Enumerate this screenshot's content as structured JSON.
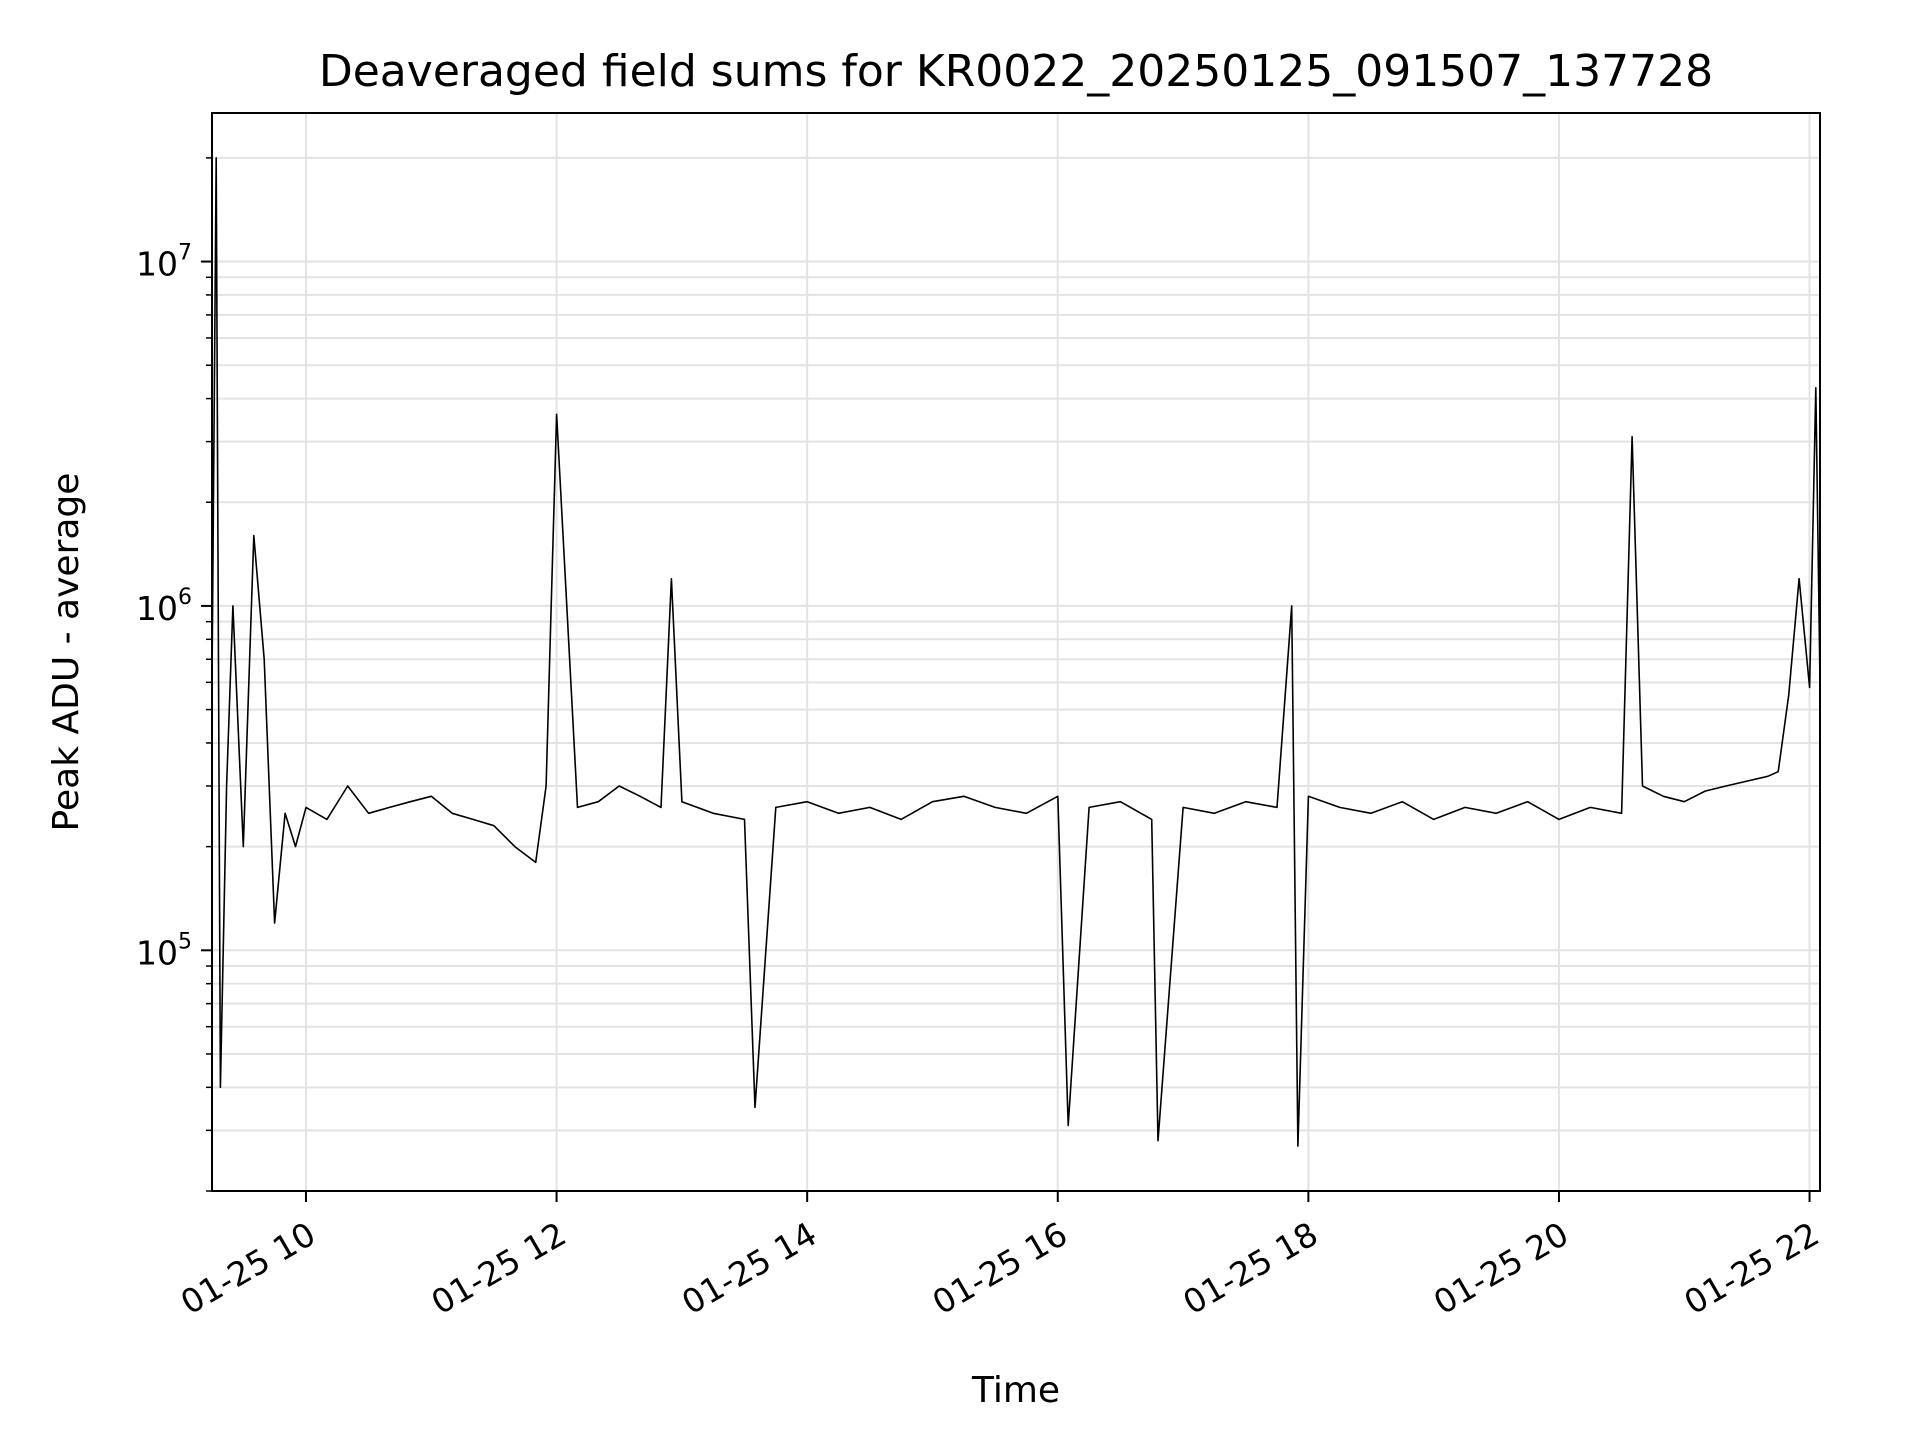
{
  "chart_data": {
    "type": "line",
    "title": "Deaveraged field sums for KR0022_20250125_091507_137728",
    "xlabel": "Time",
    "ylabel": "Peak ADU - average",
    "yscale": "log",
    "ylim": [
      20000,
      27000000
    ],
    "xlim": [
      "2025-01-25 09:15",
      "2025-01-25 22:05"
    ],
    "x_ticks": [
      {
        "value": "2025-01-25 10:00",
        "label": "01-25 10"
      },
      {
        "value": "2025-01-25 12:00",
        "label": "01-25 12"
      },
      {
        "value": "2025-01-25 14:00",
        "label": "01-25 14"
      },
      {
        "value": "2025-01-25 16:00",
        "label": "01-25 16"
      },
      {
        "value": "2025-01-25 18:00",
        "label": "01-25 18"
      },
      {
        "value": "2025-01-25 20:00",
        "label": "01-25 20"
      },
      {
        "value": "2025-01-25 22:00",
        "label": "01-25 22"
      }
    ],
    "y_ticks": [
      {
        "value": 100000,
        "base": "10",
        "exp": "5"
      },
      {
        "value": 1000000,
        "base": "10",
        "exp": "6"
      },
      {
        "value": 10000000,
        "base": "10",
        "exp": "7"
      }
    ],
    "grid": true,
    "series_color": "#000000",
    "grid_color": "#e3e3e3",
    "series": [
      {
        "x": [
          "2025-01-25 09:15",
          "2025-01-25 09:17",
          "2025-01-25 09:19",
          "2025-01-25 09:22",
          "2025-01-25 09:25",
          "2025-01-25 09:30",
          "2025-01-25 09:35",
          "2025-01-25 09:40",
          "2025-01-25 09:45",
          "2025-01-25 09:50",
          "2025-01-25 09:55",
          "2025-01-25 10:00",
          "2025-01-25 10:10",
          "2025-01-25 10:20",
          "2025-01-25 10:30",
          "2025-01-25 10:40",
          "2025-01-25 10:50",
          "2025-01-25 11:00",
          "2025-01-25 11:10",
          "2025-01-25 11:20",
          "2025-01-25 11:30",
          "2025-01-25 11:40",
          "2025-01-25 11:50",
          "2025-01-25 11:55",
          "2025-01-25 12:00",
          "2025-01-25 12:10",
          "2025-01-25 12:20",
          "2025-01-25 12:30",
          "2025-01-25 12:40",
          "2025-01-25 12:50",
          "2025-01-25 12:55",
          "2025-01-25 13:00",
          "2025-01-25 13:15",
          "2025-01-25 13:30",
          "2025-01-25 13:35",
          "2025-01-25 13:45",
          "2025-01-25 14:00",
          "2025-01-25 14:15",
          "2025-01-25 14:30",
          "2025-01-25 14:45",
          "2025-01-25 15:00",
          "2025-01-25 15:15",
          "2025-01-25 15:30",
          "2025-01-25 15:45",
          "2025-01-25 16:00",
          "2025-01-25 16:05",
          "2025-01-25 16:15",
          "2025-01-25 16:30",
          "2025-01-25 16:45",
          "2025-01-25 16:48",
          "2025-01-25 17:00",
          "2025-01-25 17:15",
          "2025-01-25 17:30",
          "2025-01-25 17:45",
          "2025-01-25 17:52",
          "2025-01-25 17:55",
          "2025-01-25 18:00",
          "2025-01-25 18:15",
          "2025-01-25 18:30",
          "2025-01-25 18:45",
          "2025-01-25 19:00",
          "2025-01-25 19:15",
          "2025-01-25 19:30",
          "2025-01-25 19:45",
          "2025-01-25 20:00",
          "2025-01-25 20:15",
          "2025-01-25 20:30",
          "2025-01-25 20:35",
          "2025-01-25 20:40",
          "2025-01-25 20:50",
          "2025-01-25 21:00",
          "2025-01-25 21:10",
          "2025-01-25 21:20",
          "2025-01-25 21:30",
          "2025-01-25 21:40",
          "2025-01-25 21:45",
          "2025-01-25 21:50",
          "2025-01-25 21:55",
          "2025-01-25 22:00",
          "2025-01-25 22:03",
          "2025-01-25 22:05"
        ],
        "y": [
          600000,
          20000000,
          40000,
          300000,
          1000000,
          200000,
          1600000,
          700000,
          120000,
          250000,
          200000,
          260000,
          240000,
          300000,
          250000,
          260000,
          270000,
          280000,
          250000,
          240000,
          230000,
          200000,
          180000,
          300000,
          3600000,
          260000,
          270000,
          300000,
          280000,
          260000,
          1200000,
          270000,
          250000,
          240000,
          35000,
          260000,
          270000,
          250000,
          260000,
          240000,
          270000,
          280000,
          260000,
          250000,
          280000,
          31000,
          260000,
          270000,
          240000,
          28000,
          260000,
          250000,
          270000,
          260000,
          1000000,
          27000,
          280000,
          260000,
          250000,
          270000,
          240000,
          260000,
          250000,
          270000,
          240000,
          260000,
          250000,
          3100000,
          300000,
          280000,
          270000,
          290000,
          300000,
          310000,
          320000,
          330000,
          550000,
          1200000,
          580000,
          4300000,
          600000
        ]
      }
    ]
  }
}
